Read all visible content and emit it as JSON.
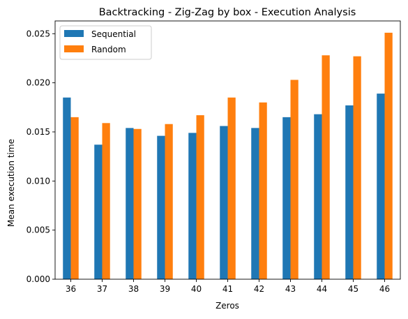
{
  "chart_data": {
    "type": "bar",
    "title": "Backtracking - Zig-Zag by box - Execution Analysis",
    "xlabel": "Zeros",
    "ylabel": "Mean execution time",
    "categories": [
      "36",
      "37",
      "38",
      "39",
      "40",
      "41",
      "42",
      "43",
      "44",
      "45",
      "46"
    ],
    "series": [
      {
        "name": "Sequential",
        "color": "#1f77b4",
        "values": [
          0.0185,
          0.0137,
          0.0154,
          0.0146,
          0.0149,
          0.0156,
          0.0154,
          0.0165,
          0.0168,
          0.0177,
          0.0189
        ]
      },
      {
        "name": "Random",
        "color": "#ff7f0e",
        "values": [
          0.0165,
          0.0159,
          0.0153,
          0.0158,
          0.0167,
          0.0185,
          0.018,
          0.0203,
          0.0228,
          0.0227,
          0.0251
        ]
      }
    ],
    "yticks": [
      "0.000",
      "0.005",
      "0.010",
      "0.015",
      "0.020",
      "0.025"
    ],
    "ytick_values": [
      0.0,
      0.005,
      0.01,
      0.015,
      0.02,
      0.025
    ],
    "ylim": [
      0,
      0.0263
    ],
    "grid": false,
    "legend_position": "top-left"
  }
}
